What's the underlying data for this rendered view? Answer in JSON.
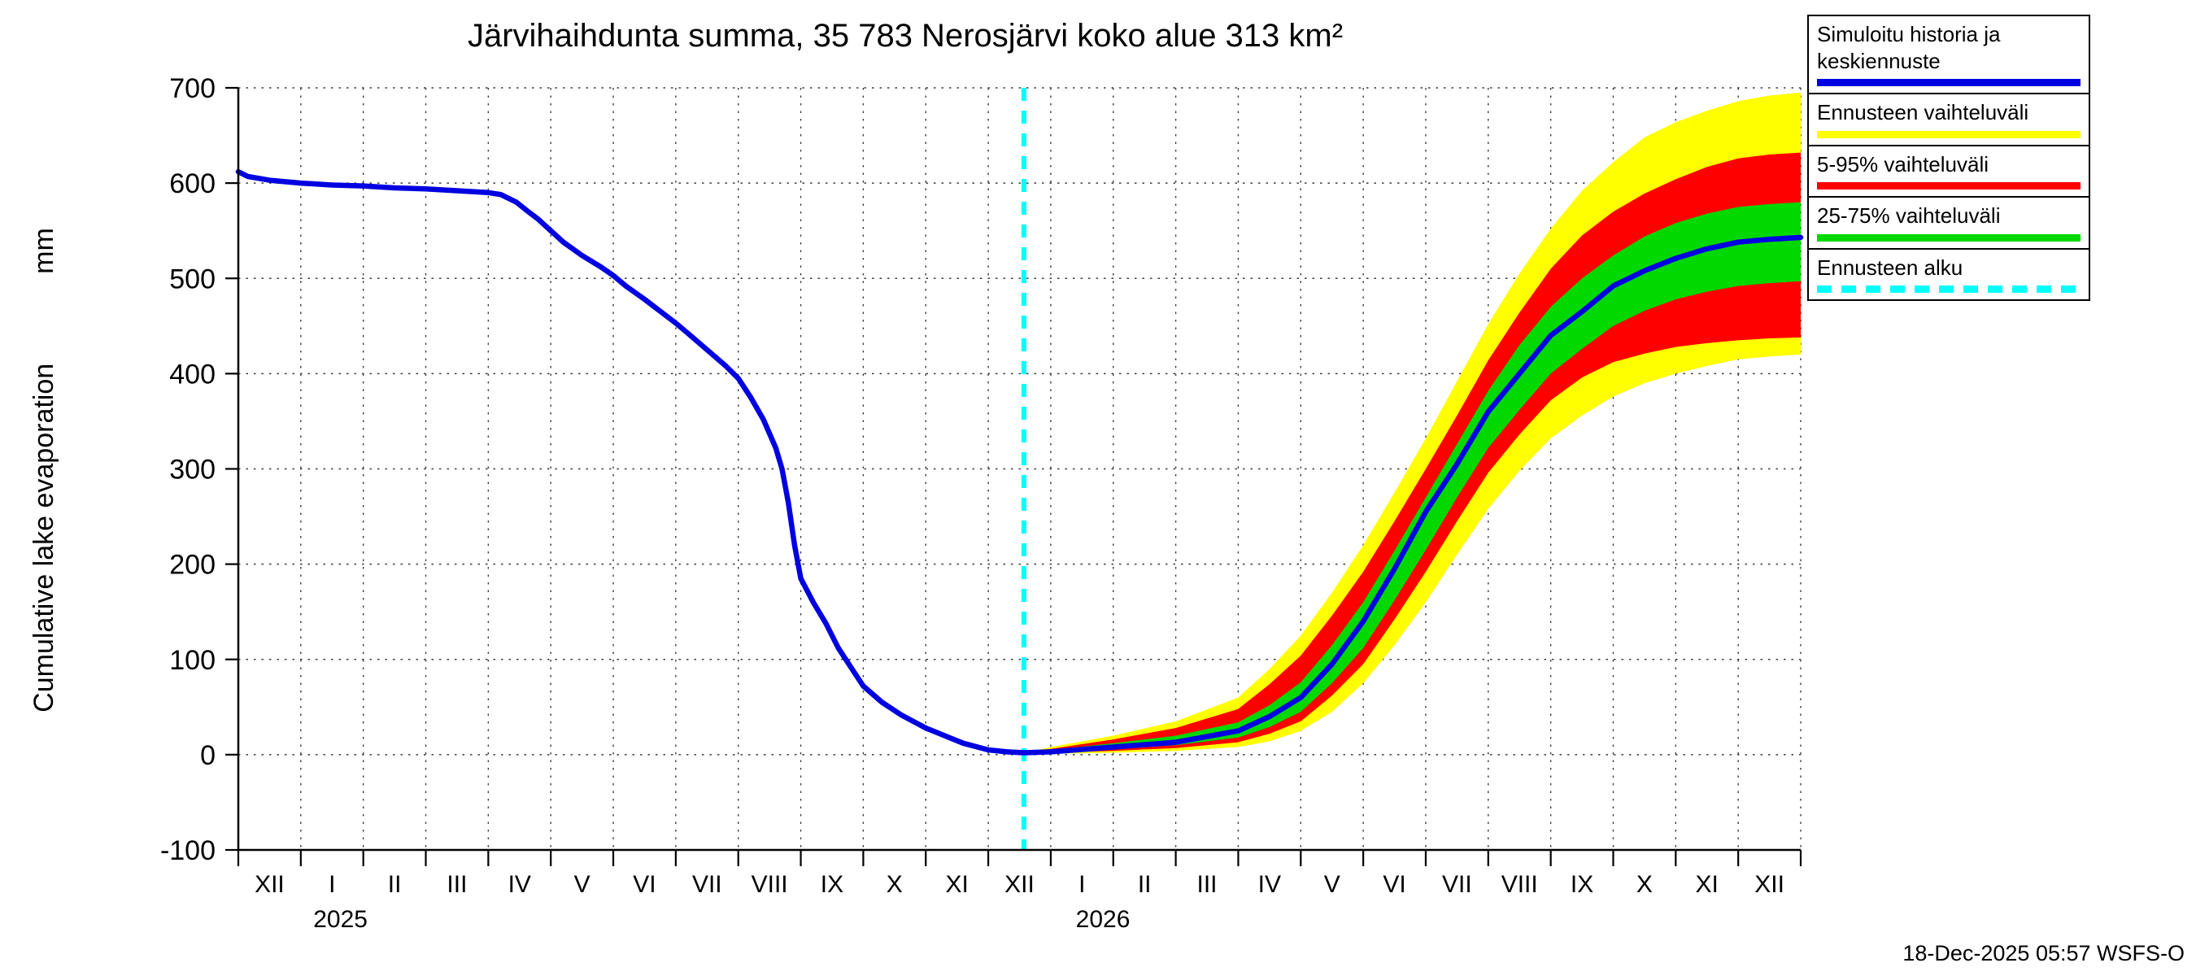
{
  "footer": {
    "timestamp": "18-Dec-2025 05:57 WSFS-O"
  },
  "legend": {
    "items": [
      {
        "label": "Simuloitu historia ja keskiennuste",
        "color": "#0000e0",
        "style": "solid"
      },
      {
        "label": "Ennusteen vaihteluväli",
        "color": "#ffff00",
        "style": "solid"
      },
      {
        "label": "5-95% vaihteluväli",
        "color": "#ff0000",
        "style": "solid"
      },
      {
        "label": "25-75% vaihteluväli",
        "color": "#00d800",
        "style": "solid"
      },
      {
        "label": "Ennusteen alku",
        "color": "#00ffff",
        "style": "dashed"
      }
    ]
  },
  "chart_data": {
    "type": "line",
    "title": "Järvihaihdunta summa, 35 783 Nerosjärvi koko alue 313 km²",
    "ylabel": "Cumulative lake evaporation",
    "y_unit": "mm",
    "ylim": [
      -100,
      700
    ],
    "y_ticks": [
      -100,
      0,
      100,
      200,
      300,
      400,
      500,
      600,
      700
    ],
    "x_tick_labels": [
      "XII",
      "I",
      "II",
      "III",
      "IV",
      "V",
      "VI",
      "VII",
      "VIII",
      "IX",
      "X",
      "XI",
      "XII",
      "I",
      "II",
      "III",
      "IV",
      "V",
      "VI",
      "VII",
      "VIII",
      "IX",
      "X",
      "XI",
      "XII"
    ],
    "year_labels": [
      {
        "label": "2025",
        "month": 1.2
      },
      {
        "label": "2026",
        "month": 13.4
      }
    ],
    "forecast_start_month": 12.57,
    "forecast_start_color": "#00ffff",
    "grid": true,
    "legend_position": "top-right",
    "series": {
      "history": {
        "name": "Simuloitu historia ja keskiennuste",
        "color": "#0000e0",
        "x": [
          0,
          0.15,
          0.5,
          1,
          1.5,
          2,
          2.5,
          3,
          3.5,
          4,
          4.2,
          4.45,
          4.6,
          4.8,
          5,
          5.2,
          5.5,
          5.8,
          6,
          6.2,
          6.5,
          6.8,
          7,
          7.2,
          7.5,
          7.8,
          8,
          8.2,
          8.4,
          8.6,
          8.7,
          8.8,
          8.9,
          9,
          9.2,
          9.4,
          9.6,
          9.8,
          10,
          10.3,
          10.6,
          11,
          11.3,
          11.6,
          12,
          12.3,
          12.57
        ],
        "y": [
          612,
          607,
          603,
          600,
          598,
          597,
          595,
          594,
          592,
          590,
          588,
          580,
          572,
          562,
          550,
          538,
          524,
          512,
          503,
          492,
          478,
          463,
          453,
          442,
          425,
          408,
          395,
          375,
          352,
          322,
          300,
          265,
          220,
          185,
          160,
          138,
          112,
          92,
          72,
          55,
          42,
          28,
          20,
          12,
          5,
          3,
          2
        ]
      },
      "forecast_median": {
        "name": "Keskiennuste",
        "color": "#0000e0",
        "x": [
          12.57,
          13,
          14,
          15,
          16,
          16.5,
          17,
          17.5,
          18,
          18.5,
          19,
          19.5,
          20,
          20.5,
          21,
          21.5,
          22,
          22.5,
          23,
          23.5,
          24,
          24.5,
          25
        ],
        "y": [
          2,
          3,
          8,
          13,
          25,
          40,
          60,
          95,
          140,
          195,
          255,
          305,
          360,
          400,
          440,
          465,
          492,
          508,
          521,
          531,
          538,
          541,
          543
        ]
      },
      "band_full_range": {
        "name": "Ennusteen vaihteluväli",
        "color": "#ffff00",
        "x": [
          12.57,
          13,
          14,
          15,
          16,
          16.5,
          17,
          17.5,
          18,
          18.5,
          19,
          19.5,
          20,
          20.5,
          21,
          21.5,
          22,
          22.5,
          23,
          23.5,
          24,
          24.5,
          25
        ],
        "lower": [
          2,
          1,
          2,
          4,
          8,
          14,
          25,
          45,
          75,
          115,
          160,
          210,
          258,
          298,
          332,
          356,
          376,
          390,
          400,
          408,
          415,
          418,
          420
        ],
        "upper": [
          2,
          8,
          20,
          35,
          60,
          90,
          125,
          170,
          220,
          275,
          332,
          392,
          452,
          505,
          552,
          592,
          622,
          648,
          664,
          676,
          686,
          692,
          695
        ]
      },
      "band_5_95": {
        "name": "5-95% vaihteluväli",
        "color": "#ff0000",
        "x": [
          12.57,
          13,
          14,
          15,
          16,
          16.5,
          17,
          17.5,
          18,
          18.5,
          19,
          19.5,
          20,
          20.5,
          21,
          21.5,
          22,
          22.5,
          23,
          23.5,
          24,
          24.5,
          25
        ],
        "lower": [
          2,
          2,
          4,
          7,
          13,
          22,
          35,
          62,
          95,
          142,
          192,
          245,
          296,
          336,
          372,
          396,
          412,
          421,
          428,
          432,
          435,
          437,
          438
        ],
        "upper": [
          2,
          6,
          16,
          28,
          48,
          74,
          104,
          146,
          192,
          245,
          300,
          356,
          414,
          464,
          510,
          545,
          570,
          589,
          604,
          617,
          626,
          630,
          632
        ]
      },
      "band_25_75": {
        "name": "25-75% vaihteluväli",
        "color": "#00d800",
        "x": [
          12.57,
          13,
          14,
          15,
          16,
          16.5,
          17,
          17.5,
          18,
          18.5,
          19,
          19.5,
          20,
          20.5,
          21,
          21.5,
          22,
          22.5,
          23,
          23.5,
          24,
          24.5,
          25
        ],
        "lower": [
          2,
          3,
          6,
          10,
          18,
          29,
          45,
          75,
          112,
          162,
          215,
          270,
          322,
          362,
          400,
          426,
          450,
          466,
          478,
          486,
          492,
          495,
          497
        ],
        "upper": [
          2,
          5,
          12,
          20,
          34,
          52,
          76,
          115,
          160,
          214,
          270,
          326,
          382,
          430,
          470,
          500,
          524,
          544,
          558,
          568,
          575,
          578,
          580
        ]
      }
    }
  }
}
